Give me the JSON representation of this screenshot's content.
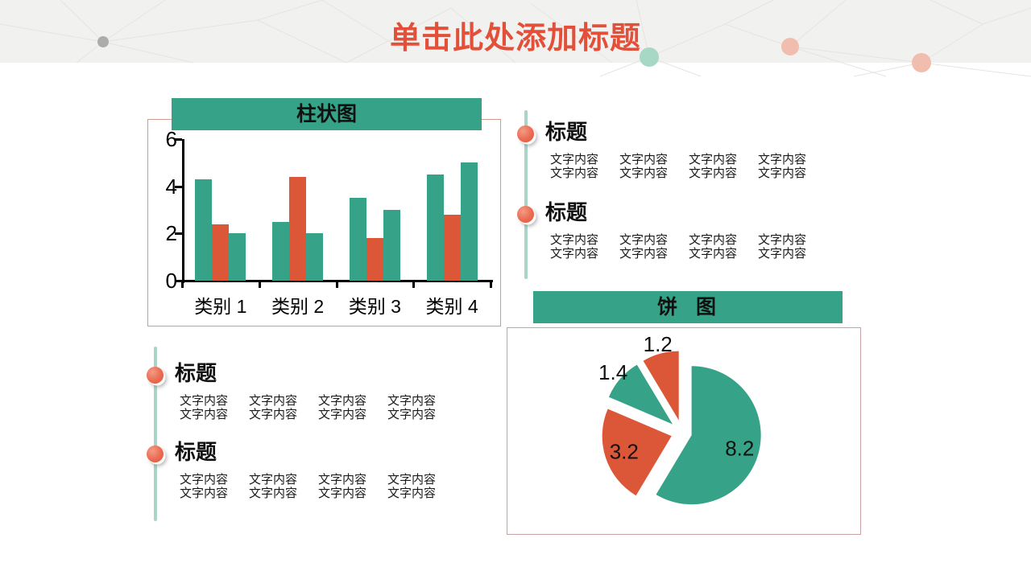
{
  "slide": {
    "title": "单击此处添加标题"
  },
  "colors": {
    "teal": "#36A287",
    "red": "#DC5638",
    "title_orange": "#E3503A",
    "bullet_salmon": "#EA6B51",
    "timeline_teal": "#A9D4C8",
    "band_background": "#F1F1EF",
    "bar_box_border": "#D49A90",
    "pie_box_border": "#C8A2A2"
  },
  "bar_panel": {
    "header": "柱状图"
  },
  "pie_panel": {
    "header": "饼  图"
  },
  "chart_data": [
    {
      "type": "bar",
      "title": "柱状图",
      "categories": [
        "类别 1",
        "类别 2",
        "类别 3",
        "类别 4"
      ],
      "series": [
        {
          "name": "series-1",
          "color": "#36A287",
          "values": [
            4.3,
            2.5,
            3.5,
            4.5
          ]
        },
        {
          "name": "series-2",
          "color": "#DC5638",
          "values": [
            2.4,
            4.4,
            1.8,
            2.8
          ]
        },
        {
          "name": "series-3",
          "color": "#36A287",
          "values": [
            2.0,
            2.0,
            3.0,
            5.0
          ]
        }
      ],
      "ylim": [
        0,
        6
      ],
      "yticks": [
        0,
        2,
        4,
        6
      ],
      "grid": false,
      "legend": "none"
    },
    {
      "type": "pie",
      "title": "饼 图",
      "labels": [
        "8.2",
        "3.2",
        "1.4",
        "1.2"
      ],
      "values": [
        8.2,
        3.2,
        1.4,
        1.2
      ],
      "colors": [
        "#36A287",
        "#DC5638",
        "#36A287",
        "#DC5638"
      ],
      "start_angle": "top",
      "direction": "clockwise",
      "exploded": true,
      "legend": "none"
    }
  ],
  "text_sections": {
    "right": {
      "items": [
        {
          "title": "标题",
          "rows": [
            [
              "文字内容",
              "文字内容",
              "文字内容",
              "文字内容"
            ],
            [
              "文字内容",
              "文字内容",
              "文字内容",
              "文字内容"
            ]
          ]
        },
        {
          "title": "标题",
          "rows": [
            [
              "文字内容",
              "文字内容",
              "文字内容",
              "文字内容"
            ],
            [
              "文字内容",
              "文字内容",
              "文字内容",
              "文字内容"
            ]
          ]
        }
      ]
    },
    "left": {
      "items": [
        {
          "title": "标题",
          "rows": [
            [
              "文字内容",
              "文字内容",
              "文字内容",
              "文字内容"
            ],
            [
              "文字内容",
              "文字内容",
              "文字内容",
              "文字内容"
            ]
          ]
        },
        {
          "title": "标题",
          "rows": [
            [
              "文字内容",
              "文字内容",
              "文字内容",
              "文字内容"
            ],
            [
              "文字内容",
              "文字内容",
              "文字内容",
              "文字内容"
            ]
          ]
        }
      ]
    }
  },
  "decor": {
    "dots": [
      {
        "name": "gray-dot",
        "color": "#ACACAC"
      },
      {
        "name": "teal-dot",
        "color": "#A7D7C5"
      },
      {
        "name": "salmon-dot-1",
        "color": "#F1BDAE"
      },
      {
        "name": "salmon-dot-2",
        "color": "#F1BDAE"
      }
    ]
  }
}
